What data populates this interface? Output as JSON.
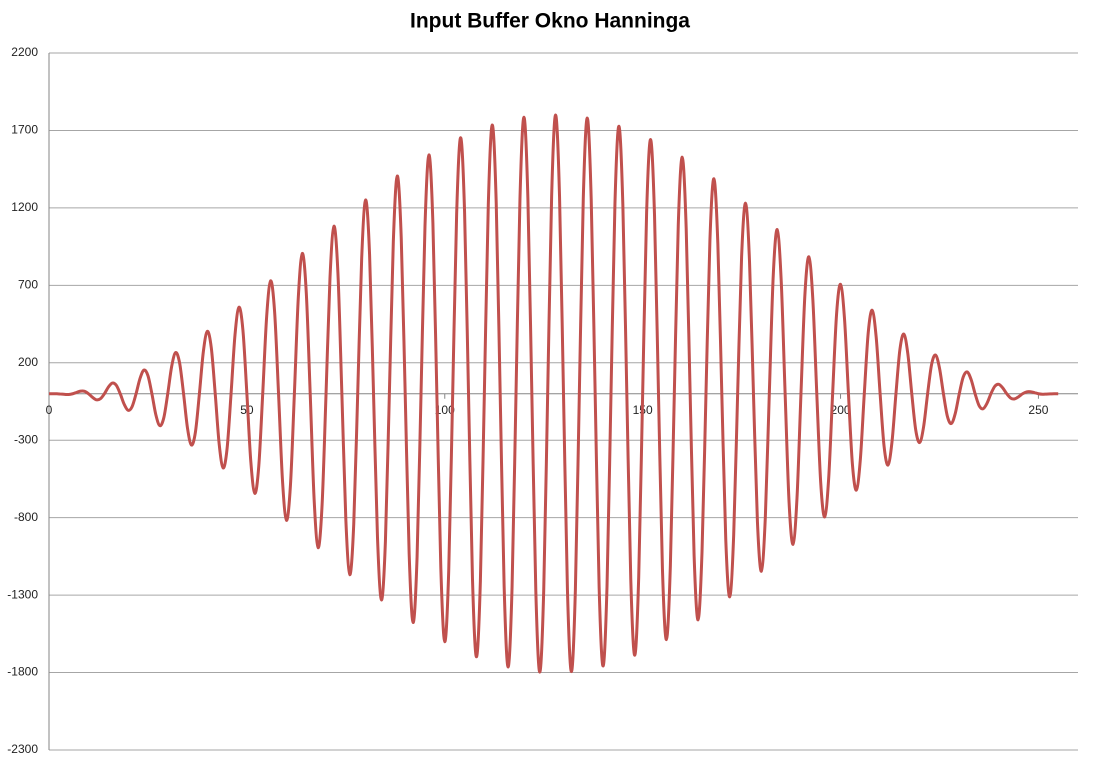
{
  "chart_data": {
    "type": "line",
    "title": "Input Buffer Okno Hanninga",
    "x": [
      0,
      1,
      2,
      3,
      4,
      5,
      6,
      7,
      8,
      9,
      10,
      11,
      12,
      13,
      14,
      15,
      16,
      17,
      18,
      19,
      20,
      21,
      22,
      23,
      24,
      25,
      26,
      27,
      28,
      29,
      30,
      31,
      32,
      33,
      34,
      35,
      36,
      37,
      38,
      39,
      40,
      41,
      42,
      43,
      44,
      45,
      46,
      47,
      48,
      49,
      50,
      51,
      52,
      53,
      54,
      55,
      56,
      57,
      58,
      59,
      60,
      61,
      62,
      63,
      64,
      65,
      66,
      67,
      68,
      69,
      70,
      71,
      72,
      73,
      74,
      75,
      76,
      77,
      78,
      79,
      80,
      81,
      82,
      83,
      84,
      85,
      86,
      87,
      88,
      89,
      90,
      91,
      92,
      93,
      94,
      95,
      96,
      97,
      98,
      99,
      100,
      101,
      102,
      103,
      104,
      105,
      106,
      107,
      108,
      109,
      110,
      111,
      112,
      113,
      114,
      115,
      116,
      117,
      118,
      119,
      120,
      121,
      122,
      123,
      124,
      125,
      126,
      127,
      128,
      129,
      130,
      131,
      132,
      133,
      134,
      135,
      136,
      137,
      138,
      139,
      140,
      141,
      142,
      143,
      144,
      145,
      146,
      147,
      148,
      149,
      150,
      151,
      152,
      153,
      154,
      155,
      156,
      157,
      158,
      159,
      160,
      161,
      162,
      163,
      164,
      165,
      166,
      167,
      168,
      169,
      170,
      171,
      172,
      173,
      174,
      175,
      176,
      177,
      178,
      179,
      180,
      181,
      182,
      183,
      184,
      185,
      186,
      187,
      188,
      189,
      190,
      191,
      192,
      193,
      194,
      195,
      196,
      197,
      198,
      199,
      200,
      201,
      202,
      203,
      204,
      205,
      206,
      207,
      208,
      209,
      210,
      211,
      212,
      213,
      214,
      215,
      216,
      217,
      218,
      219,
      220,
      221,
      222,
      223,
      224,
      225,
      226,
      227,
      228,
      229,
      230,
      231,
      232,
      233,
      234,
      235,
      236,
      237,
      238,
      239,
      240,
      241,
      242,
      243,
      244,
      245,
      246,
      247,
      248,
      249,
      250,
      251,
      252,
      253,
      254,
      255
    ],
    "series": [
      {
        "color": "#c0504d",
        "values": [
          0,
          0,
          0,
          -2,
          -4,
          -5,
          0,
          9,
          17,
          16,
          0,
          -23,
          -39,
          -32,
          0,
          43,
          69,
          55,
          0,
          -68,
          -107,
          -83,
          0,
          99,
          153,
          117,
          0,
          -136,
          -206,
          -156,
          0,
          177,
          266,
          199,
          0,
          -223,
          -331,
          -247,
          0,
          272,
          403,
          298,
          0,
          -325,
          -479,
          -353,
          0,
          381,
          559,
          410,
          0,
          -440,
          -643,
          -469,
          0,
          500,
          729,
          531,
          0,
          -562,
          -817,
          -593,
          0,
          625,
          906,
          656,
          0,
          -687,
          -994,
          -718,
          0,
          749,
          1082,
          781,
          0,
          -810,
          -1168,
          -841,
          0,
          870,
          1251,
          899,
          0,
          -927,
          -1331,
          -954,
          0,
          981,
          1406,
          1007,
          0,
          -1032,
          -1477,
          -1056,
          0,
          1080,
          1542,
          1102,
          0,
          -1122,
          -1601,
          -1142,
          0,
          1160,
          1653,
          1177,
          0,
          -1193,
          -1698,
          -1208,
          0,
          1221,
          1735,
          1232,
          0,
          -1243,
          -1764,
          -1251,
          0,
          1258,
          1785,
          1265,
          0,
          -1268,
          -1797,
          -1271,
          0,
          1273,
          1800,
          1272,
          0,
          -1270,
          -1794,
          -1267,
          0,
          1262,
          1780,
          1256,
          0,
          -1247,
          -1758,
          -1238,
          0,
          1227,
          1727,
          1215,
          0,
          -1200,
          -1688,
          -1186,
          0,
          1169,
          1641,
          1151,
          0,
          -1132,
          -1587,
          -1112,
          0,
          1090,
          1527,
          1068,
          0,
          -1044,
          -1460,
          -1020,
          0,
          994,
          1388,
          968,
          0,
          -941,
          -1311,
          -913,
          0,
          884,
          1230,
          855,
          0,
          -826,
          -1146,
          -795,
          0,
          765,
          1060,
          734,
          0,
          -703,
          -972,
          -672,
          0,
          641,
          884,
          609,
          0,
          -578,
          -795,
          -547,
          0,
          515,
          707,
          485,
          0,
          -455,
          -622,
          -425,
          0,
          395,
          539,
          367,
          0,
          -339,
          -460,
          -311,
          0,
          285,
          385,
          259,
          0,
          -234,
          -315,
          -211,
          0,
          188,
          250,
          166,
          0,
          -146,
          -192,
          -126,
          0,
          108,
          141,
          91,
          0,
          -76,
          -97,
          -62,
          0,
          49,
          61,
          37,
          0,
          -28,
          -33,
          -19,
          0,
          12,
          13,
          7,
          0,
          -3,
          -2,
          -1,
          0,
          0
        ]
      }
    ],
    "xlim": [
      0,
      260
    ],
    "xticks": [
      0,
      50,
      100,
      150,
      200,
      250
    ],
    "ylim": [
      -2300,
      2200
    ],
    "yticks": [
      -2300,
      -1800,
      -1300,
      -800,
      -300,
      200,
      700,
      1200,
      1700,
      2200
    ],
    "grid": true,
    "smooth": true
  }
}
